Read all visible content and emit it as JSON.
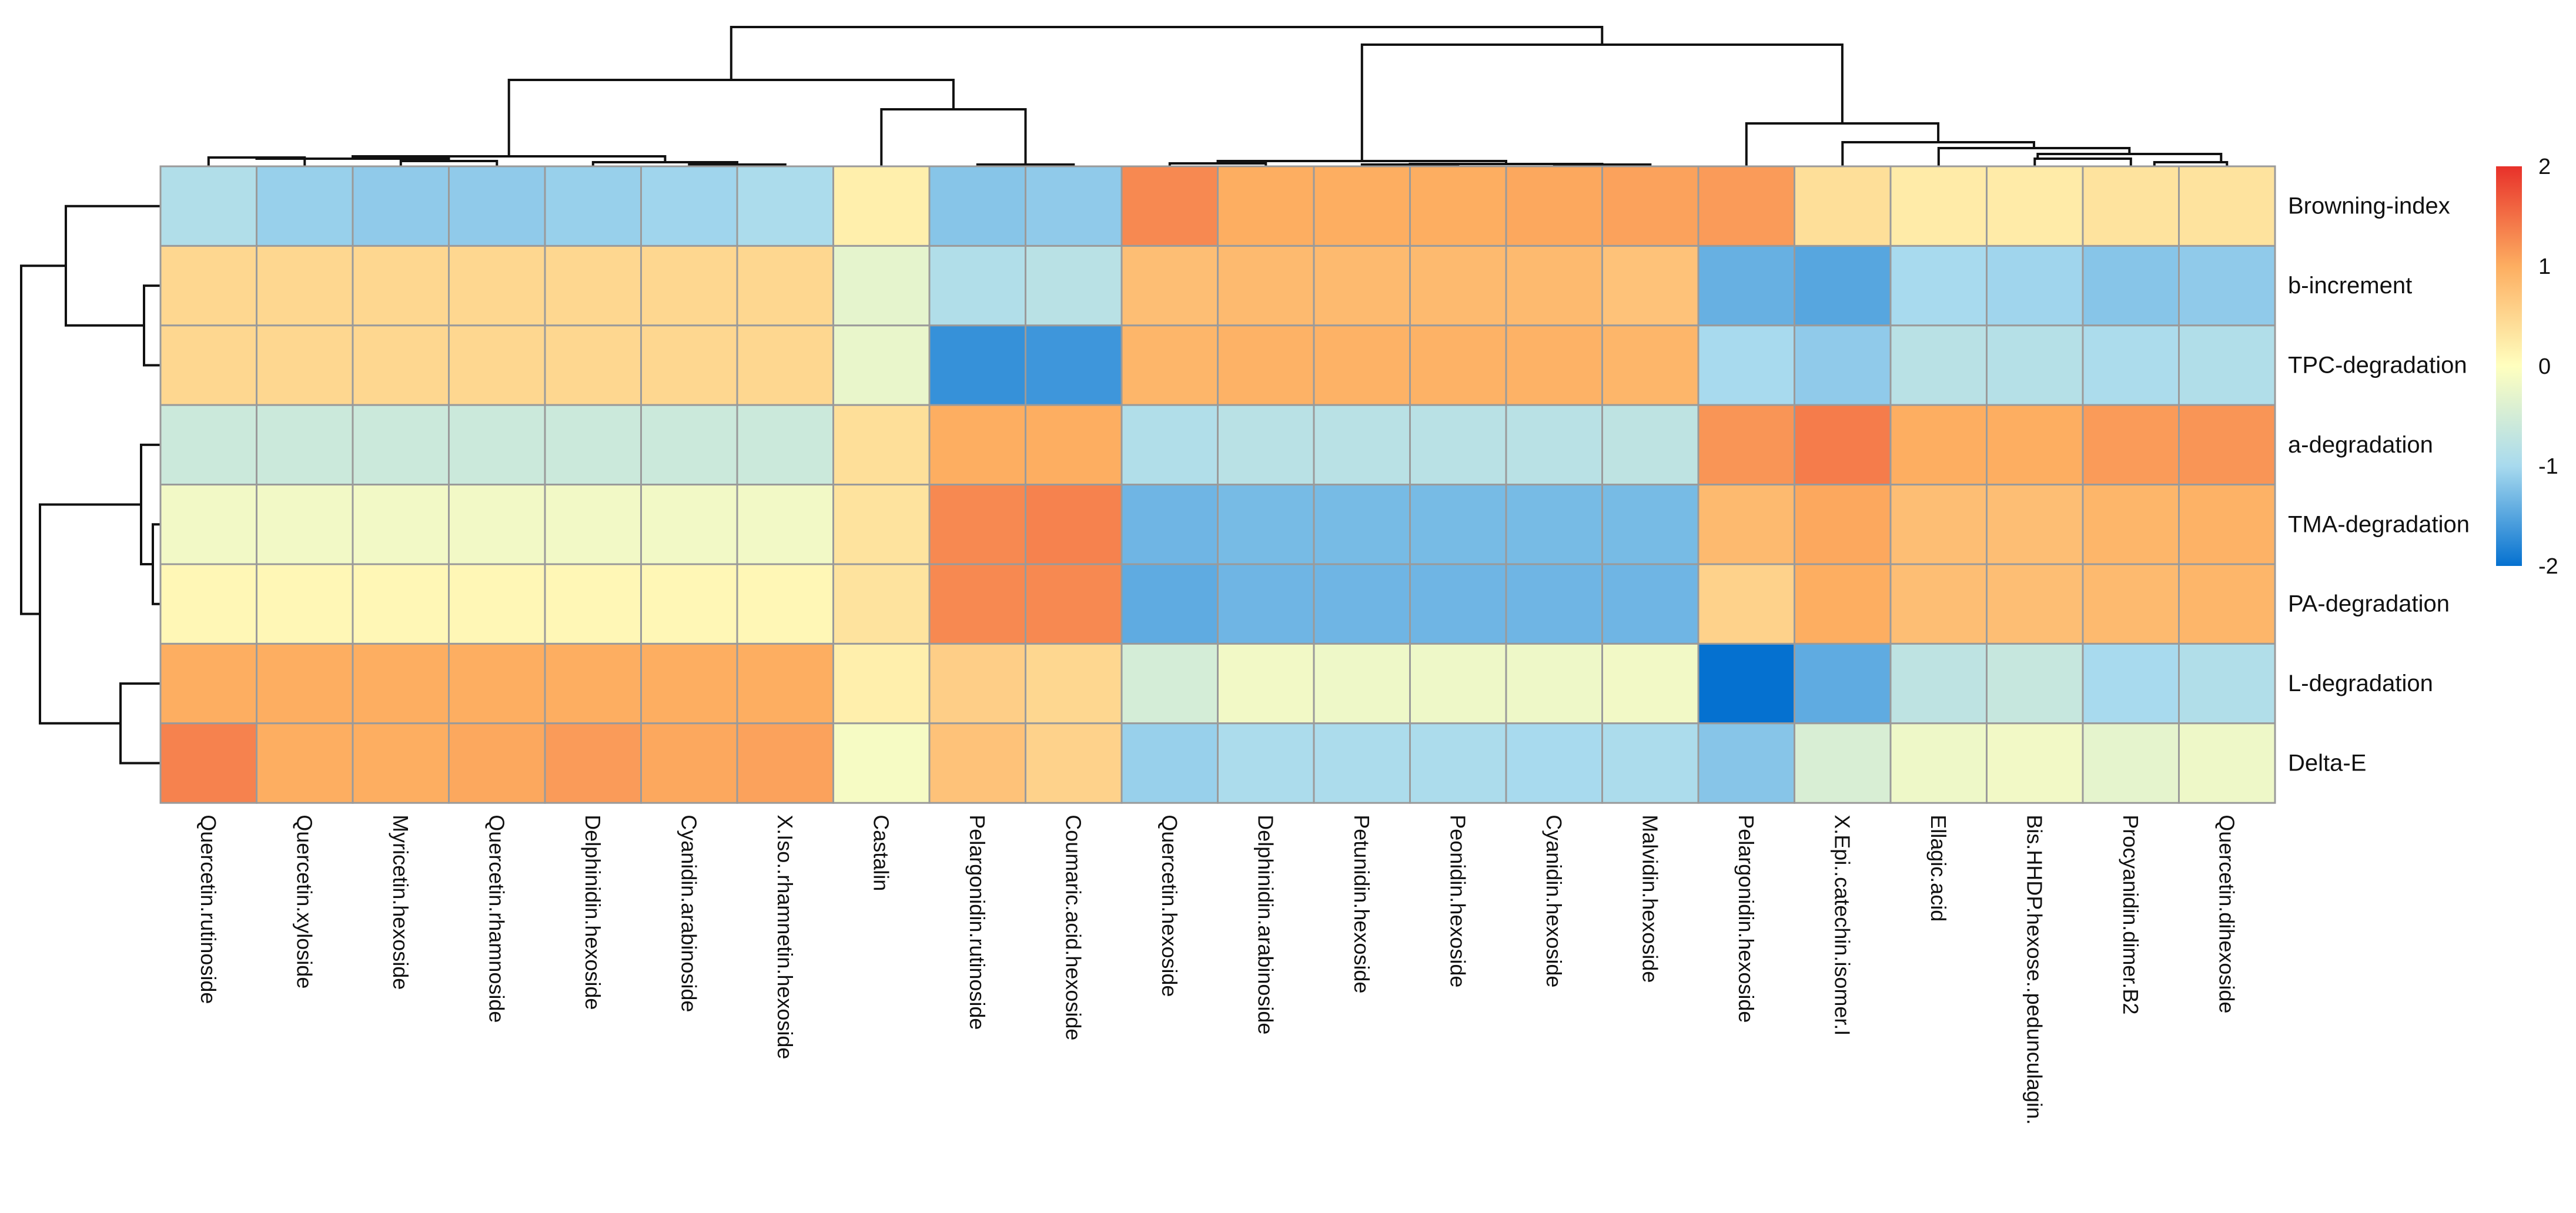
{
  "chart_data": {
    "type": "heatmap",
    "title": "",
    "xlabel": "",
    "ylabel": "",
    "rows": [
      "Browning-index",
      "b-increment",
      "TPC-degradation",
      "a-degradation",
      "TMA-degradation",
      "PA-degradation",
      "L-degradation",
      "Delta-E"
    ],
    "columns": [
      "Quercetin.rutinoside",
      "Quercetin.xyloside",
      "Myricetin.hexoside",
      "Quercetin.rhamnoside",
      "Delphinidin.hexoside",
      "Cyanidin.arabinoside",
      "X.Iso..rhamnetin.hexoside",
      "Castalin",
      "Pelargonidin.rutinoside",
      "Coumaric.acid.hexoside",
      "Quercetin.hexoside",
      "Delphinidin.arabinoside",
      "Petunidin.hexoside",
      "Peonidin.hexoside",
      "Cyanidin.hexoside",
      "Malvidin.hexoside",
      "Pelargonidin.hexoside",
      "X.Epi..catechin.isomer.I",
      "Ellagic.acid",
      "Bis.HHDP.hexose..pedunculagin.",
      "Procyanidin.dimer.B2",
      "Quercetin.dihexoside"
    ],
    "values": [
      [
        -0.9,
        -1.1,
        -1.15,
        -1.15,
        -1.1,
        -1.05,
        -0.95,
        0.2,
        -1.2,
        -1.15,
        1.3,
        1.0,
        1.0,
        1.0,
        1.05,
        1.1,
        1.15,
        0.4,
        0.25,
        0.25,
        0.35,
        0.35
      ],
      [
        0.5,
        0.5,
        0.5,
        0.5,
        0.5,
        0.5,
        0.5,
        -0.3,
        -0.9,
        -0.8,
        0.8,
        0.85,
        0.85,
        0.85,
        0.85,
        0.75,
        -1.4,
        -1.5,
        -1.0,
        -1.05,
        -1.2,
        -1.15
      ],
      [
        0.5,
        0.5,
        0.5,
        0.5,
        0.5,
        0.5,
        0.5,
        -0.25,
        -1.7,
        -1.65,
        0.9,
        0.95,
        0.95,
        0.95,
        0.95,
        0.9,
        -1.0,
        -1.15,
        -0.8,
        -0.85,
        -0.95,
        -0.9
      ],
      [
        -0.6,
        -0.6,
        -0.6,
        -0.6,
        -0.6,
        -0.6,
        -0.6,
        0.4,
        1.0,
        1.0,
        -0.9,
        -0.8,
        -0.8,
        -0.8,
        -0.8,
        -0.75,
        1.2,
        1.4,
        1.0,
        1.0,
        1.15,
        1.2
      ],
      [
        -0.15,
        -0.15,
        -0.15,
        -0.15,
        -0.15,
        -0.15,
        -0.15,
        0.35,
        1.3,
        1.35,
        -1.35,
        -1.3,
        -1.3,
        -1.3,
        -1.3,
        -1.3,
        0.85,
        1.05,
        0.8,
        0.8,
        0.9,
        0.95
      ],
      [
        0.1,
        0.1,
        0.1,
        0.1,
        0.1,
        0.1,
        0.1,
        0.35,
        1.3,
        1.3,
        -1.45,
        -1.35,
        -1.35,
        -1.35,
        -1.35,
        -1.35,
        0.55,
        1.0,
        0.8,
        0.8,
        0.85,
        0.9
      ],
      [
        1.0,
        1.0,
        1.0,
        1.0,
        1.0,
        1.0,
        1.0,
        0.2,
        0.6,
        0.5,
        -0.5,
        -0.15,
        -0.2,
        -0.2,
        -0.2,
        -0.15,
        -2.0,
        -1.45,
        -0.75,
        -0.65,
        -1.0,
        -0.9
      ],
      [
        1.35,
        1.0,
        1.0,
        1.05,
        1.15,
        1.05,
        1.1,
        -0.1,
        0.75,
        0.55,
        -1.1,
        -0.95,
        -0.95,
        -0.95,
        -1.0,
        -0.95,
        -1.2,
        -0.45,
        -0.2,
        -0.15,
        -0.3,
        -0.2
      ]
    ],
    "color_scale": {
      "min": -2,
      "max": 2,
      "ticks": [
        2,
        1,
        0,
        -1,
        -2
      ],
      "colors": [
        "#0571d0",
        "#a8daee",
        "#ffffbf",
        "#fdae61",
        "#e8312a"
      ]
    },
    "legend_placement": "right",
    "row_dendrogram": "left",
    "column_dendrogram": "top"
  }
}
